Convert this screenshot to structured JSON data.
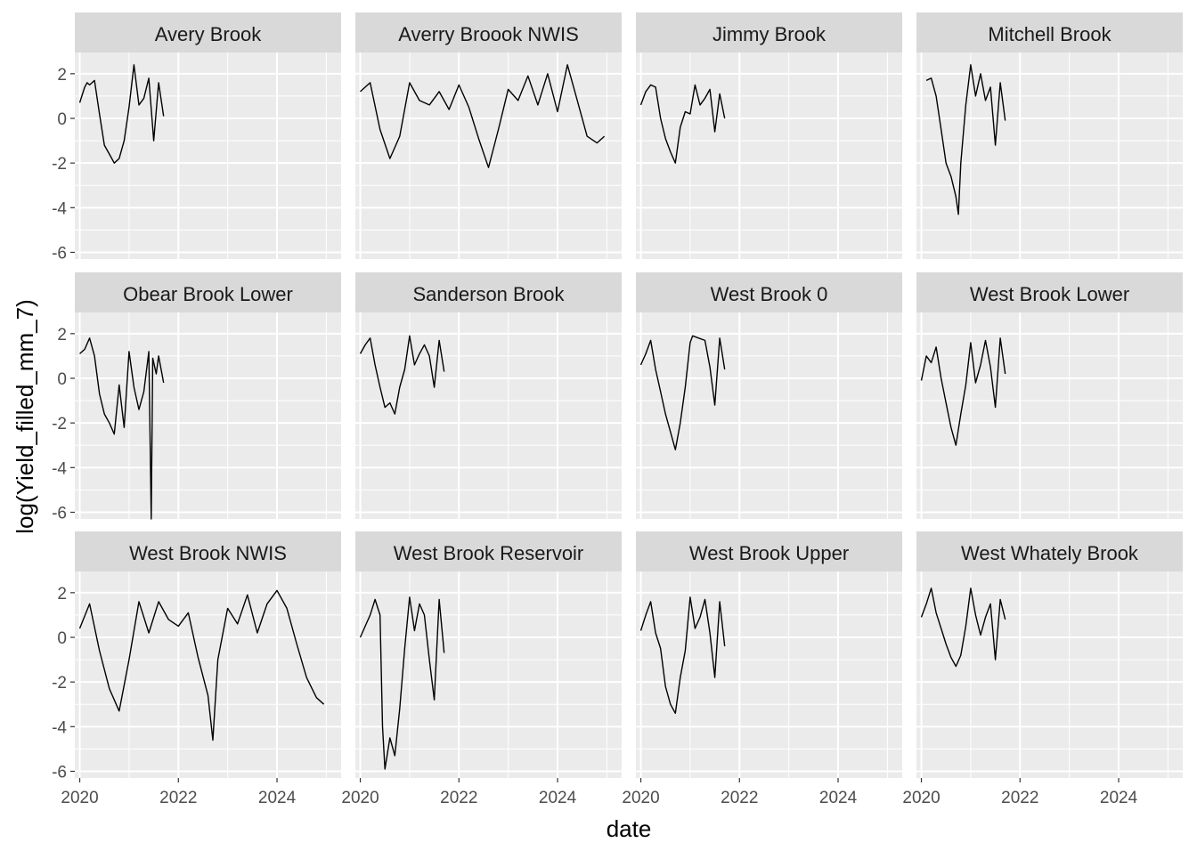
{
  "chart_data": {
    "type": "line",
    "xlabel": "date",
    "ylabel": "log(Yield_filled_mm_7)",
    "x_ticks": [
      "2020",
      "2022",
      "2024"
    ],
    "y_ticks": [
      -6,
      -4,
      -2,
      0,
      2
    ],
    "xlim": [
      2019.9,
      2025.3
    ],
    "ylim": [
      -6.3,
      2.95
    ],
    "grid": true,
    "colors": {
      "panel_bg": "#EBEBEB",
      "strip_bg": "#D9D9D9",
      "grid": "#FFFFFF",
      "line": "#000000",
      "tick_text": "#4D4D4D"
    },
    "facets": [
      {
        "name": "Avery Brook",
        "x": [
          2020.0,
          2020.1,
          2020.15,
          2020.2,
          2020.3,
          2020.4,
          2020.5,
          2020.6,
          2020.7,
          2020.8,
          2020.9,
          2021.0,
          2021.1,
          2021.2,
          2021.3,
          2021.4,
          2021.5,
          2021.6,
          2021.7
        ],
        "y": [
          0.7,
          1.4,
          1.6,
          1.5,
          1.7,
          0.2,
          -1.2,
          -1.6,
          -2.0,
          -1.8,
          -1.0,
          0.5,
          2.4,
          0.6,
          0.9,
          1.8,
          -1.0,
          1.6,
          0.1
        ]
      },
      {
        "name": "Averry Broook NWIS",
        "x": [
          2020.0,
          2020.2,
          2020.4,
          2020.6,
          2020.8,
          2021.0,
          2021.2,
          2021.4,
          2021.6,
          2021.8,
          2022.0,
          2022.2,
          2022.4,
          2022.6,
          2022.8,
          2023.0,
          2023.2,
          2023.4,
          2023.6,
          2023.8,
          2024.0,
          2024.2,
          2024.4,
          2024.6,
          2024.8,
          2024.95
        ],
        "y": [
          1.2,
          1.6,
          -0.5,
          -1.8,
          -0.8,
          1.6,
          0.8,
          0.6,
          1.2,
          0.4,
          1.5,
          0.5,
          -0.9,
          -2.2,
          -0.5,
          1.3,
          0.8,
          1.9,
          0.6,
          2.0,
          0.3,
          2.4,
          0.8,
          -0.8,
          -1.1,
          -0.8
        ]
      },
      {
        "name": "Jimmy Brook",
        "x": [
          2020.0,
          2020.1,
          2020.2,
          2020.3,
          2020.4,
          2020.5,
          2020.6,
          2020.7,
          2020.8,
          2020.9,
          2021.0,
          2021.1,
          2021.2,
          2021.3,
          2021.4,
          2021.5,
          2021.6,
          2021.7
        ],
        "y": [
          0.6,
          1.2,
          1.5,
          1.4,
          0.0,
          -0.9,
          -1.5,
          -2.0,
          -0.4,
          0.3,
          0.2,
          1.5,
          0.6,
          0.9,
          1.3,
          -0.6,
          1.1,
          0.0
        ]
      },
      {
        "name": "Mitchell Brook",
        "x": [
          2020.1,
          2020.2,
          2020.3,
          2020.4,
          2020.5,
          2020.6,
          2020.7,
          2020.75,
          2020.8,
          2020.9,
          2021.0,
          2021.1,
          2021.2,
          2021.3,
          2021.4,
          2021.5,
          2021.6,
          2021.7
        ],
        "y": [
          1.7,
          1.8,
          1.0,
          -0.5,
          -2.0,
          -2.6,
          -3.5,
          -4.3,
          -2.0,
          0.6,
          2.4,
          1.0,
          2.0,
          0.8,
          1.4,
          -1.2,
          1.6,
          -0.1
        ]
      },
      {
        "name": "Obear Brook Lower",
        "x": [
          2020.0,
          2020.1,
          2020.2,
          2020.3,
          2020.4,
          2020.5,
          2020.6,
          2020.7,
          2020.8,
          2020.9,
          2021.0,
          2021.1,
          2021.2,
          2021.3,
          2021.4,
          2021.45,
          2021.48,
          2021.55,
          2021.6,
          2021.7
        ],
        "y": [
          1.1,
          1.3,
          1.8,
          1.0,
          -0.7,
          -1.6,
          -2.0,
          -2.5,
          -0.3,
          -2.2,
          1.2,
          -0.4,
          -1.4,
          -0.6,
          1.2,
          -6.3,
          0.9,
          0.2,
          1.0,
          -0.2
        ]
      },
      {
        "name": "Sanderson Brook",
        "x": [
          2020.0,
          2020.1,
          2020.2,
          2020.3,
          2020.4,
          2020.5,
          2020.6,
          2020.7,
          2020.8,
          2020.9,
          2021.0,
          2021.1,
          2021.2,
          2021.3,
          2021.4,
          2021.5,
          2021.6,
          2021.7
        ],
        "y": [
          1.1,
          1.5,
          1.8,
          0.6,
          -0.4,
          -1.3,
          -1.1,
          -1.6,
          -0.4,
          0.4,
          1.9,
          0.6,
          1.1,
          1.5,
          1.0,
          -0.4,
          1.7,
          0.3
        ]
      },
      {
        "name": "West Brook 0",
        "x": [
          2020.0,
          2020.1,
          2020.2,
          2020.3,
          2020.4,
          2020.5,
          2020.6,
          2020.7,
          2020.8,
          2020.9,
          2021.0,
          2021.05,
          2021.3,
          2021.4,
          2021.5,
          2021.6,
          2021.7
        ],
        "y": [
          0.6,
          1.1,
          1.7,
          0.4,
          -0.6,
          -1.6,
          -2.4,
          -3.2,
          -2.0,
          -0.4,
          1.6,
          1.9,
          1.7,
          0.5,
          -1.2,
          1.8,
          0.4
        ]
      },
      {
        "name": "West Brook Lower",
        "x": [
          2020.0,
          2020.1,
          2020.2,
          2020.3,
          2020.4,
          2020.5,
          2020.6,
          2020.7,
          2020.8,
          2020.9,
          2021.0,
          2021.1,
          2021.2,
          2021.3,
          2021.4,
          2021.5,
          2021.6,
          2021.7
        ],
        "y": [
          -0.1,
          1.0,
          0.7,
          1.4,
          0.0,
          -1.1,
          -2.2,
          -3.0,
          -1.6,
          -0.3,
          1.6,
          -0.2,
          0.6,
          1.7,
          0.5,
          -1.3,
          1.8,
          0.2
        ]
      },
      {
        "name": "West Brook NWIS",
        "x": [
          2020.0,
          2020.2,
          2020.4,
          2020.6,
          2020.8,
          2021.0,
          2021.2,
          2021.4,
          2021.6,
          2021.8,
          2022.0,
          2022.2,
          2022.4,
          2022.6,
          2022.7,
          2022.8,
          2023.0,
          2023.2,
          2023.4,
          2023.6,
          2023.8,
          2024.0,
          2024.2,
          2024.4,
          2024.6,
          2024.8,
          2024.95
        ],
        "y": [
          0.4,
          1.5,
          -0.6,
          -2.3,
          -3.3,
          -1.0,
          1.6,
          0.2,
          1.6,
          0.8,
          0.5,
          1.1,
          -0.9,
          -2.6,
          -4.6,
          -1.0,
          1.3,
          0.6,
          1.9,
          0.2,
          1.5,
          2.1,
          1.3,
          -0.3,
          -1.8,
          -2.7,
          -3.0
        ]
      },
      {
        "name": "West Brook Reservoir",
        "x": [
          2020.0,
          2020.1,
          2020.2,
          2020.3,
          2020.4,
          2020.45,
          2020.5,
          2020.6,
          2020.7,
          2020.8,
          2020.9,
          2021.0,
          2021.1,
          2021.2,
          2021.3,
          2021.4,
          2021.5,
          2021.6,
          2021.7
        ],
        "y": [
          0.0,
          0.5,
          1.0,
          1.7,
          1.0,
          -4.0,
          -5.9,
          -4.5,
          -5.3,
          -3.2,
          -0.5,
          1.8,
          0.3,
          1.5,
          1.0,
          -1.0,
          -2.8,
          1.7,
          -0.7
        ]
      },
      {
        "name": "West Brook Upper",
        "x": [
          2020.0,
          2020.1,
          2020.2,
          2020.3,
          2020.4,
          2020.5,
          2020.6,
          2020.7,
          2020.8,
          2020.9,
          2021.0,
          2021.1,
          2021.2,
          2021.3,
          2021.4,
          2021.5,
          2021.6,
          2021.7
        ],
        "y": [
          0.3,
          1.0,
          1.6,
          0.2,
          -0.5,
          -2.2,
          -3.0,
          -3.4,
          -1.8,
          -0.6,
          1.8,
          0.4,
          0.9,
          1.7,
          0.2,
          -1.8,
          1.6,
          -0.4
        ]
      },
      {
        "name": "West Whately Brook",
        "x": [
          2020.0,
          2020.1,
          2020.2,
          2020.3,
          2020.4,
          2020.5,
          2020.6,
          2020.7,
          2020.8,
          2020.9,
          2021.0,
          2021.1,
          2021.2,
          2021.3,
          2021.4,
          2021.5,
          2021.6,
          2021.7
        ],
        "y": [
          0.9,
          1.5,
          2.2,
          1.1,
          0.4,
          -0.3,
          -0.9,
          -1.3,
          -0.8,
          0.5,
          2.2,
          1.0,
          0.1,
          0.9,
          1.5,
          -1.0,
          1.7,
          0.8
        ]
      }
    ]
  }
}
